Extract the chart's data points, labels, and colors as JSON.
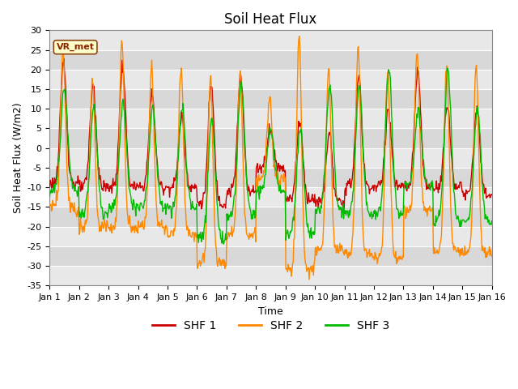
{
  "title": "Soil Heat Flux",
  "xlabel": "Time",
  "ylabel": "Soil Heat Flux (W/m2)",
  "ylim": [
    -35,
    30
  ],
  "yticks": [
    -35,
    -30,
    -25,
    -20,
    -15,
    -10,
    -5,
    0,
    5,
    10,
    15,
    20,
    25,
    30
  ],
  "n_days": 15,
  "xtick_labels": [
    "Jan 1",
    "Jan 2",
    "Jan 3",
    "Jan 4",
    "Jan 5",
    "Jan 6",
    "Jan 7",
    "Jan 8",
    "Jan 9",
    "Jan 10",
    "Jan 11",
    "Jan 12",
    "Jan 13",
    "Jan 14",
    "Jan 15",
    "Jan 16"
  ],
  "colors": {
    "shf1": "#cc0000",
    "shf2": "#ff8800",
    "shf3": "#00bb00"
  },
  "legend_labels": [
    "SHF 1",
    "SHF 2",
    "SHF 3"
  ],
  "vr_met_label": "VR_met",
  "fig_bg": "#ffffff",
  "plot_bg_light": "#e8e8e8",
  "plot_bg_dark": "#d8d8d8",
  "linewidth": 1.0,
  "title_fontsize": 12,
  "axis_fontsize": 9,
  "tick_fontsize": 8,
  "legend_fontsize": 10
}
